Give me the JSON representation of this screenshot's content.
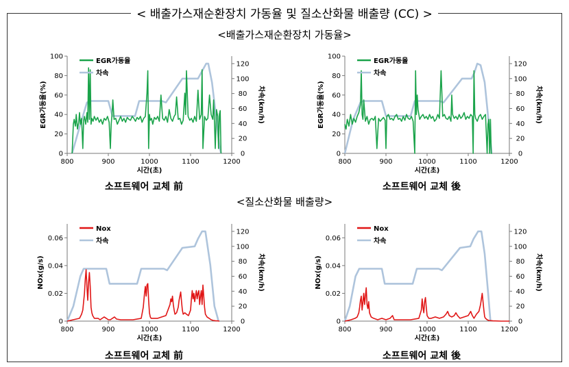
{
  "header": {
    "main_title": "< 배출가스재순환장치 가동율 및 질소산화물 배출량 (CC) >",
    "section1_title": "<배출가스재순환장치 가동율>",
    "section2_title": "<질소산화물 배출량>"
  },
  "captions": {
    "before": "소프트웨어 교체 前",
    "after": "소프트웨어 교체 後"
  },
  "chart_data": [
    {
      "type": "line",
      "xlabel": "시간(초)",
      "ylabel": "EGR가동율(%)",
      "y2label": "차속(km/h)",
      "xlim": [
        800,
        1200
      ],
      "xticks": [
        800,
        900,
        1000,
        1100,
        1200
      ],
      "ylim": [
        0,
        100
      ],
      "yticks": [
        0,
        20,
        40,
        60,
        80,
        100
      ],
      "y2lim": [
        0,
        130
      ],
      "y2ticks": [
        0,
        20,
        40,
        60,
        80,
        100,
        120
      ],
      "legend_position": "top-left",
      "series": [
        {
          "name": "EGR가동율",
          "axis": "left",
          "color": "#1aa34a",
          "x": [
            812,
            815,
            817,
            820,
            822,
            825,
            828,
            830,
            832,
            835,
            838,
            840,
            842,
            845,
            848,
            850,
            852,
            854,
            856,
            858,
            860,
            863,
            866,
            870,
            874,
            878,
            882,
            886,
            890,
            894,
            898,
            902,
            905,
            907,
            909,
            911,
            914,
            918,
            922,
            926,
            930,
            934,
            938,
            942,
            946,
            950,
            954,
            958,
            962,
            966,
            970,
            974,
            978,
            982,
            986,
            990,
            994,
            996,
            998,
            1000,
            1002,
            1005,
            1008,
            1012,
            1016,
            1020,
            1024,
            1028,
            1032,
            1036,
            1040,
            1044,
            1048,
            1052,
            1056,
            1060,
            1063,
            1066,
            1070,
            1074,
            1078,
            1082,
            1086,
            1088,
            1090,
            1094,
            1098,
            1102,
            1106,
            1110,
            1114,
            1118,
            1122,
            1126,
            1128,
            1130,
            1134,
            1138,
            1142,
            1146,
            1150,
            1154,
            1156,
            1158,
            1160,
            1163,
            1166,
            1168,
            1170,
            1172,
            1174
          ],
          "y": [
            0,
            30,
            35,
            28,
            40,
            25,
            32,
            42,
            30,
            36,
            5,
            34,
            38,
            30,
            42,
            32,
            88,
            35,
            86,
            30,
            36,
            33,
            38,
            34,
            37,
            32,
            35,
            30,
            36,
            34,
            38,
            32,
            5,
            30,
            40,
            55,
            35,
            36,
            30,
            34,
            38,
            33,
            36,
            32,
            37,
            35,
            34,
            38,
            36,
            33,
            37,
            35,
            38,
            32,
            36,
            38,
            62,
            85,
            5,
            40,
            34,
            36,
            30,
            37,
            35,
            38,
            33,
            60,
            36,
            34,
            38,
            32,
            45,
            36,
            33,
            38,
            40,
            58,
            35,
            36,
            30,
            34,
            62,
            40,
            85,
            38,
            34,
            36,
            32,
            38,
            33,
            65,
            35,
            40,
            86,
            5,
            38,
            34,
            36,
            60,
            40,
            35,
            55,
            33,
            5,
            45,
            38,
            5,
            40,
            44,
            0
          ]
        },
        {
          "name": "차속",
          "axis": "right",
          "color": "#aec4dc",
          "x": [
            812,
            830,
            848,
            856,
            900,
            910,
            965,
            975,
            1030,
            1040,
            1080,
            1105,
            1118,
            1128,
            1138,
            1143,
            1152,
            1164,
            1170,
            1174
          ],
          "y": [
            0,
            35,
            68,
            70,
            70,
            50,
            50,
            70,
            70,
            68,
            100,
            100,
            100,
            110,
            120,
            120,
            95,
            40,
            10,
            0
          ]
        }
      ]
    },
    {
      "type": "line",
      "xlabel": "시간(초)",
      "ylabel": "EGR가동율(%)",
      "y2label": "차속(km/h)",
      "xlim": [
        800,
        1200
      ],
      "xticks": [
        800,
        900,
        1000,
        1100,
        1200
      ],
      "ylim": [
        0,
        100
      ],
      "yticks": [
        0,
        20,
        40,
        60,
        80,
        100
      ],
      "y2lim": [
        0,
        130
      ],
      "y2ticks": [
        0,
        20,
        40,
        60,
        80,
        100,
        120
      ],
      "legend_position": "top-left",
      "series": [
        {
          "name": "EGR가동율",
          "axis": "left",
          "color": "#1aa34a",
          "x": [
            800,
            803,
            806,
            810,
            814,
            818,
            822,
            826,
            830,
            834,
            838,
            840,
            842,
            844,
            846,
            850,
            854,
            858,
            862,
            866,
            870,
            874,
            878,
            882,
            886,
            890,
            894,
            898,
            900,
            902,
            906,
            910,
            914,
            918,
            922,
            926,
            930,
            934,
            938,
            942,
            946,
            950,
            954,
            958,
            962,
            966,
            970,
            972,
            974,
            976,
            978,
            982,
            986,
            990,
            994,
            998,
            1002,
            1006,
            1010,
            1014,
            1018,
            1022,
            1026,
            1030,
            1034,
            1038,
            1042,
            1046,
            1050,
            1054,
            1058,
            1060,
            1062,
            1066,
            1070,
            1074,
            1078,
            1082,
            1086,
            1090,
            1094,
            1098,
            1102,
            1106,
            1110,
            1112,
            1114,
            1116,
            1118,
            1122,
            1126,
            1130,
            1134,
            1138,
            1142,
            1146,
            1148,
            1150,
            1152,
            1154,
            1156,
            1158
          ],
          "y": [
            30,
            25,
            35,
            28,
            40,
            30,
            36,
            32,
            38,
            42,
            50,
            85,
            40,
            35,
            55,
            33,
            38,
            30,
            35,
            36,
            34,
            38,
            5,
            36,
            33,
            35,
            37,
            34,
            5,
            38,
            40,
            35,
            36,
            34,
            38,
            40,
            35,
            36,
            33,
            38,
            34,
            40,
            36,
            35,
            38,
            33,
            0,
            85,
            40,
            60,
            45,
            35,
            38,
            40,
            36,
            38,
            35,
            40,
            36,
            38,
            33,
            35,
            40,
            36,
            85,
            38,
            40,
            36,
            35,
            38,
            33,
            60,
            40,
            36,
            38,
            35,
            40,
            36,
            38,
            42,
            35,
            38,
            36,
            40,
            38,
            0,
            85,
            40,
            36,
            33,
            38,
            40,
            35,
            38,
            40,
            0,
            30,
            35,
            0,
            35,
            0,
            0
          ]
        },
        {
          "name": "차속",
          "axis": "right",
          "color": "#aec4dc",
          "x": [
            800,
            820,
            838,
            845,
            890,
            900,
            960,
            970,
            1030,
            1040,
            1085,
            1108,
            1115,
            1122,
            1130,
            1140,
            1150,
            1157
          ],
          "y": [
            0,
            45,
            68,
            70,
            70,
            50,
            50,
            70,
            70,
            68,
            100,
            100,
            108,
            120,
            118,
            95,
            40,
            0
          ]
        }
      ]
    },
    {
      "type": "line",
      "xlabel": "시간(초)",
      "ylabel": "NOx(g/s)",
      "y2label": "차속(km/h)",
      "xlim": [
        800,
        1200
      ],
      "xticks": [
        800,
        900,
        1000,
        1100,
        1200
      ],
      "ylim": [
        0,
        0.07
      ],
      "yticks": [
        0,
        0.02,
        0.04,
        0.06
      ],
      "y2lim": [
        0,
        130
      ],
      "y2ticks": [
        0,
        20,
        40,
        60,
        80,
        100,
        120
      ],
      "legend_position": "top-left",
      "series": [
        {
          "name": "Nox",
          "axis": "left",
          "color": "#e01515",
          "x": [
            800,
            830,
            835,
            838,
            840,
            842,
            844,
            846,
            848,
            850,
            852,
            854,
            856,
            858,
            860,
            862,
            864,
            866,
            870,
            875,
            880,
            890,
            895,
            900,
            905,
            910,
            915,
            920,
            930,
            960,
            980,
            985,
            988,
            990,
            992,
            994,
            996,
            998,
            1000,
            1002,
            1004,
            1006,
            1010,
            1020,
            1030,
            1040,
            1045,
            1050,
            1052,
            1054,
            1056,
            1058,
            1060,
            1062,
            1066,
            1070,
            1072,
            1074,
            1076,
            1078,
            1080,
            1082,
            1086,
            1090,
            1095,
            1100,
            1102,
            1104,
            1106,
            1108,
            1110,
            1112,
            1114,
            1116,
            1118,
            1120,
            1122,
            1124,
            1126,
            1128,
            1130,
            1132,
            1134,
            1136,
            1140,
            1145,
            1150,
            1155,
            1160,
            1165,
            1170
          ],
          "y": [
            0,
            0.002,
            0.005,
            0.008,
            0.014,
            0.02,
            0.03,
            0.037,
            0.025,
            0.015,
            0.028,
            0.035,
            0.025,
            0.01,
            0.006,
            0.004,
            0.003,
            0.002,
            0.002,
            0.002,
            0.001,
            0.003,
            0.002,
            0.001,
            0.001,
            0.002,
            0.003,
            0.0015,
            0.001,
            0.001,
            0.002,
            0.01,
            0.02,
            0.025,
            0.018,
            0.026,
            0.027,
            0.015,
            0.006,
            0.003,
            0.002,
            0.002,
            0.002,
            0.002,
            0.003,
            0.004,
            0.008,
            0.012,
            0.016,
            0.014,
            0.018,
            0.012,
            0.008,
            0.005,
            0.006,
            0.01,
            0.015,
            0.018,
            0.021,
            0.014,
            0.008,
            0.005,
            0.006,
            0.005,
            0.004,
            0.008,
            0.016,
            0.022,
            0.016,
            0.02,
            0.014,
            0.018,
            0.022,
            0.016,
            0.02,
            0.022,
            0.012,
            0.018,
            0.022,
            0.012,
            0.026,
            0.018,
            0.01,
            0.005,
            0.003,
            0.002,
            0.001,
            0.0005,
            0.0003,
            0.0002,
            0
          ]
        },
        {
          "name": "차속",
          "axis": "right",
          "color": "#aec4dc",
          "x": [
            800,
            815,
            832,
            840,
            895,
            903,
            970,
            980,
            1035,
            1043,
            1080,
            1110,
            1118,
            1128,
            1136,
            1148,
            1158,
            1168
          ],
          "y": [
            0,
            20,
            60,
            70,
            70,
            50,
            50,
            70,
            70,
            68,
            98,
            100,
            110,
            120,
            120,
            75,
            20,
            0
          ]
        }
      ]
    },
    {
      "type": "line",
      "xlabel": "시간(초)",
      "ylabel": "NOx(g/s)",
      "y2label": "차속(km/h)",
      "xlim": [
        800,
        1200
      ],
      "xticks": [
        800,
        900,
        1000,
        1100,
        1200
      ],
      "ylim": [
        0,
        0.07
      ],
      "yticks": [
        0,
        0.02,
        0.04,
        0.06
      ],
      "y2lim": [
        0,
        130
      ],
      "y2ticks": [
        0,
        20,
        40,
        60,
        80,
        100,
        120
      ],
      "legend_position": "top-left",
      "series": [
        {
          "name": "Nox",
          "axis": "left",
          "color": "#e01515",
          "x": [
            800,
            815,
            825,
            830,
            834,
            836,
            838,
            840,
            842,
            844,
            846,
            848,
            850,
            852,
            854,
            856,
            858,
            860,
            864,
            870,
            880,
            890,
            900,
            910,
            916,
            920,
            930,
            940,
            960,
            980,
            986,
            988,
            990,
            992,
            994,
            996,
            998,
            1000,
            1004,
            1010,
            1020,
            1030,
            1040,
            1046,
            1050,
            1054,
            1060,
            1066,
            1070,
            1074,
            1080,
            1090,
            1100,
            1106,
            1110,
            1114,
            1120,
            1126,
            1130,
            1132,
            1134,
            1136,
            1138,
            1140,
            1142,
            1146,
            1150,
            1160,
            1180,
            1200
          ],
          "y": [
            0,
            0.001,
            0.002,
            0.003,
            0.006,
            0.01,
            0.015,
            0.018,
            0.008,
            0.014,
            0.02,
            0.012,
            0.018,
            0.024,
            0.012,
            0.009,
            0.014,
            0.006,
            0.003,
            0.002,
            0.001,
            0.002,
            0.001,
            0.002,
            0.004,
            0.001,
            0.001,
            0.001,
            0.001,
            0.002,
            0.008,
            0.016,
            0.01,
            0.006,
            0.014,
            0.017,
            0.01,
            0.004,
            0.002,
            0.002,
            0.003,
            0.002,
            0.003,
            0.005,
            0.007,
            0.004,
            0.003,
            0.004,
            0.006,
            0.004,
            0.002,
            0.003,
            0.004,
            0.007,
            0.004,
            0.002,
            0.005,
            0.007,
            0.012,
            0.016,
            0.02,
            0.014,
            0.008,
            0.003,
            0.002,
            0.001,
            0.0005,
            0.0002,
            0,
            0
          ]
        },
        {
          "name": "차속",
          "axis": "right",
          "color": "#aec4dc",
          "x": [
            800,
            812,
            826,
            835,
            890,
            897,
            965,
            975,
            1028,
            1036,
            1080,
            1105,
            1113,
            1124,
            1132,
            1140,
            1148,
            1154
          ],
          "y": [
            0,
            20,
            60,
            70,
            70,
            50,
            50,
            70,
            70,
            68,
            98,
            100,
            110,
            120,
            120,
            90,
            40,
            0
          ]
        }
      ]
    }
  ]
}
